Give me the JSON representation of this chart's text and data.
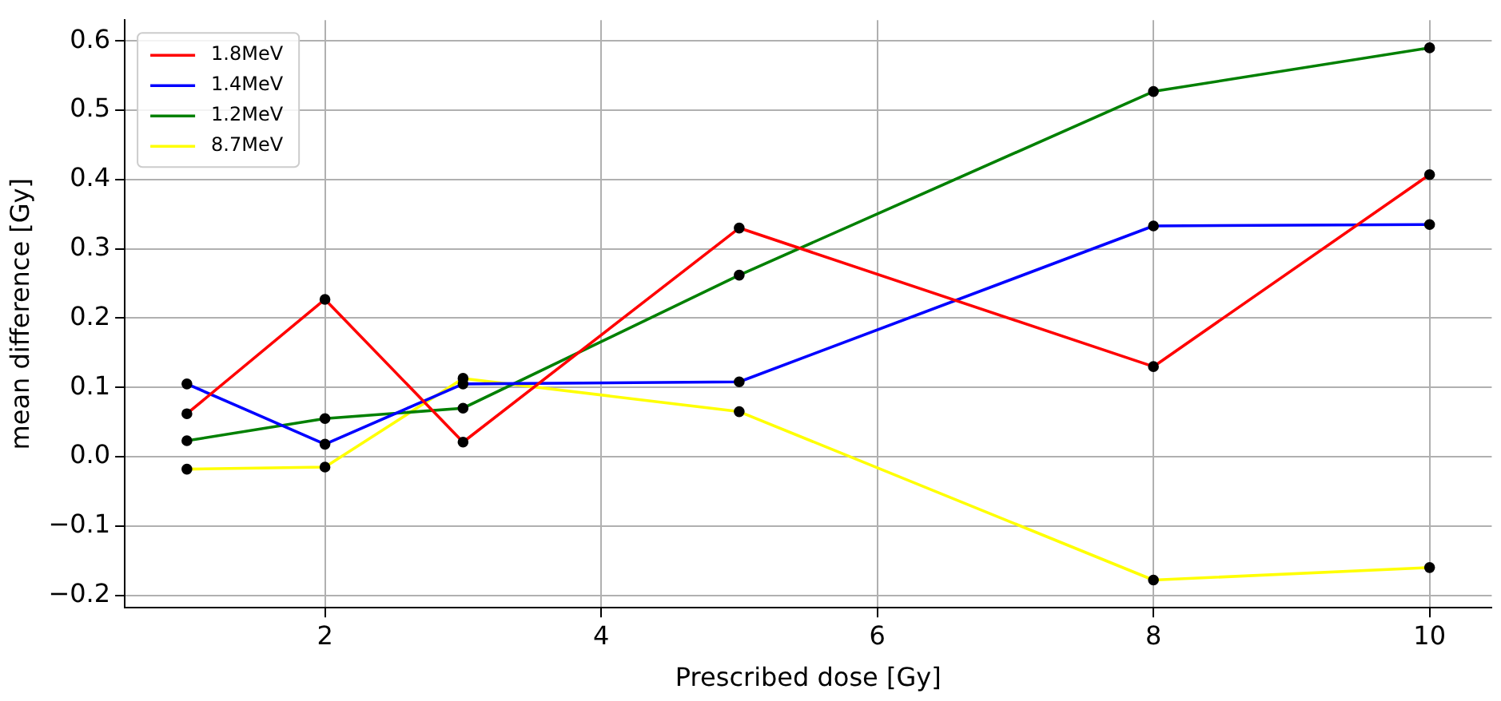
{
  "chart_data": {
    "type": "line",
    "xlabel": "Prescribed dose [Gy]",
    "ylabel": "mean difference [Gy]",
    "x": [
      1,
      2,
      3,
      5,
      8,
      10
    ],
    "series": [
      {
        "name": "1.8MeV",
        "color": "#ff0000",
        "values": [
          0.062,
          0.227,
          0.021,
          0.33,
          0.13,
          0.407
        ]
      },
      {
        "name": "1.4MeV",
        "color": "#0000ff",
        "values": [
          0.105,
          0.018,
          0.105,
          0.108,
          0.333,
          0.335
        ]
      },
      {
        "name": "1.2MeV",
        "color": "#008000",
        "values": [
          0.023,
          0.055,
          0.07,
          0.262,
          0.527,
          0.59
        ]
      },
      {
        "name": "8.7MeV",
        "color": "#ffff00",
        "values": [
          -0.018,
          -0.015,
          0.113,
          0.065,
          -0.178,
          -0.16
        ]
      }
    ],
    "xlim": [
      0.55,
      10.45
    ],
    "xticks": [
      2,
      4,
      6,
      8,
      10
    ],
    "ylim": [
      -0.218,
      0.63
    ],
    "yticks": [
      {
        "value": -0.2,
        "label": "−0.2"
      },
      {
        "value": -0.1,
        "label": "−0.1"
      },
      {
        "value": 0,
        "label": "0.0"
      },
      0.1,
      0.2,
      0.3,
      0.4,
      0.5,
      0.6
    ],
    "grid": true,
    "legend": "top left",
    "marker": "circle"
  }
}
